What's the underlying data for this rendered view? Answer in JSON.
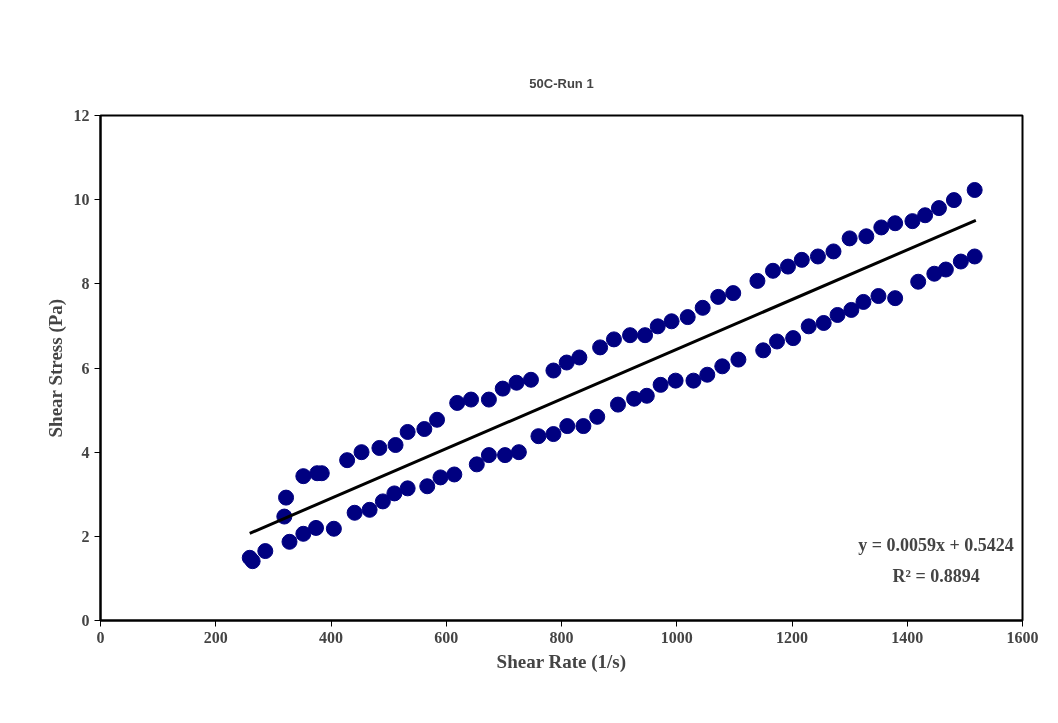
{
  "chart_data": {
    "type": "scatter",
    "title": "50C-Run 1",
    "xlabel": "Shear Rate (1/s)",
    "ylabel": "Shear Stress (Pa)",
    "xlim": [
      0,
      1600
    ],
    "xticks": [
      0,
      200,
      400,
      600,
      800,
      1000,
      1200,
      1400,
      1600
    ],
    "ylim": [
      0,
      12
    ],
    "yticks": [
      0,
      2,
      4,
      6,
      8,
      10,
      12
    ],
    "grid": false,
    "marker": "circle",
    "annotations": [
      "y = 0.0059x + 0.5424",
      "R² = 0.8894"
    ],
    "series": [
      {
        "color": "#000080",
        "x": [
          259,
          264,
          286,
          319,
          328,
          352,
          374,
          405,
          441,
          467,
          490,
          510,
          533,
          567,
          590,
          614,
          653,
          674,
          702,
          726,
          760,
          786,
          810,
          838,
          862,
          898,
          926,
          948,
          972,
          998,
          1029,
          1053,
          1079,
          1107,
          1150,
          1174,
          1202,
          1229,
          1255,
          1279,
          1303,
          1324,
          1350,
          1379,
          1419,
          1447,
          1467,
          1493,
          1517,
          322,
          352,
          376,
          384,
          428,
          453,
          484,
          512,
          533,
          562,
          584,
          619,
          643,
          674,
          698,
          722,
          747,
          786,
          809,
          831,
          867,
          891,
          919,
          945,
          967,
          991,
          1019,
          1045,
          1072,
          1098,
          1140,
          1167,
          1193,
          1217,
          1245,
          1272,
          1300,
          1329,
          1355,
          1379,
          1409,
          1431,
          1455,
          1481,
          1517
        ],
        "values": [
          1.49,
          1.41,
          1.65,
          2.47,
          1.87,
          2.06,
          2.2,
          2.18,
          2.56,
          2.63,
          2.83,
          3.02,
          3.14,
          3.19,
          3.4,
          3.47,
          3.71,
          3.93,
          3.93,
          4.0,
          4.38,
          4.43,
          4.62,
          4.62,
          4.84,
          5.13,
          5.27,
          5.34,
          5.6,
          5.7,
          5.7,
          5.84,
          6.04,
          6.2,
          6.42,
          6.63,
          6.71,
          6.99,
          7.07,
          7.26,
          7.38,
          7.57,
          7.71,
          7.66,
          8.05,
          8.24,
          8.34,
          8.53,
          8.65,
          2.92,
          3.43,
          3.5,
          3.5,
          3.81,
          4.0,
          4.1,
          4.17,
          4.48,
          4.55,
          4.77,
          5.17,
          5.25,
          5.25,
          5.51,
          5.65,
          5.72,
          5.94,
          6.13,
          6.25,
          6.49,
          6.68,
          6.78,
          6.78,
          6.99,
          7.11,
          7.21,
          7.43,
          7.69,
          7.78,
          8.07,
          8.31,
          8.41,
          8.57,
          8.65,
          8.77,
          9.08,
          9.13,
          9.34,
          9.44,
          9.49,
          9.63,
          9.8,
          9.99,
          10.23
        ]
      },
      {
        "type": "line",
        "color": "#000000",
        "marker": "none",
        "line_style": "solid",
        "x": [
          259,
          1519
        ],
        "values": [
          2.07,
          9.51
        ]
      }
    ]
  }
}
